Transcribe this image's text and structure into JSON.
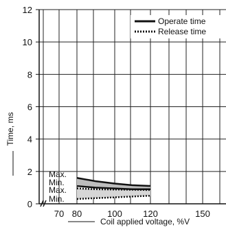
{
  "chart_data": {
    "type": "line",
    "xlabel": "Coil applied voltage, %V",
    "ylabel": "Time, ms",
    "x_ticks": [
      70,
      80,
      100,
      120,
      150
    ],
    "y_ticks": [
      0,
      2,
      4,
      6,
      8,
      10,
      12
    ],
    "ylim": [
      0,
      12
    ],
    "grid": true,
    "legend_position": "top-right",
    "legend": [
      {
        "label": "Operate time",
        "style": "solid"
      },
      {
        "label": "Release time",
        "style": "dotted"
      }
    ],
    "band_labels": [
      "Max.",
      "Min.",
      "Max.",
      "Min."
    ],
    "series": [
      {
        "name": "Operate time Max.",
        "style": "solid",
        "x": [
          80,
          90,
          100,
          110,
          120
        ],
        "values": [
          1.6,
          1.4,
          1.25,
          1.15,
          1.1
        ]
      },
      {
        "name": "Operate time Min.",
        "style": "solid",
        "x": [
          80,
          90,
          100,
          110,
          120
        ],
        "values": [
          1.1,
          1.0,
          0.95,
          0.9,
          0.9
        ]
      },
      {
        "name": "Release time Max.",
        "style": "dotted",
        "x": [
          80,
          90,
          100,
          110,
          120
        ],
        "values": [
          0.95,
          0.9,
          0.88,
          0.87,
          0.85
        ]
      },
      {
        "name": "Release time Min.",
        "style": "dotted",
        "x": [
          80,
          90,
          100,
          110,
          120
        ],
        "values": [
          0.3,
          0.35,
          0.4,
          0.45,
          0.5
        ]
      }
    ]
  }
}
